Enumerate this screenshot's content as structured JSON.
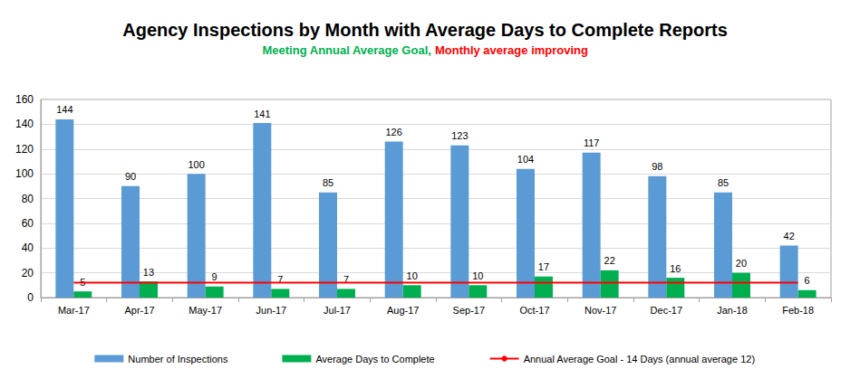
{
  "chart_data": {
    "type": "bar",
    "title": "Agency Inspections by Month with Average Days to Complete Reports",
    "subtitle": [
      {
        "text": "Meeting Annual Average Goal,",
        "color": "#00b050"
      },
      {
        "text": "Monthly average improving",
        "color": "#ff0000"
      }
    ],
    "categories": [
      "Mar-17",
      "Apr-17",
      "May-17",
      "Jun-17",
      "Jul-17",
      "Aug-17",
      "Sep-17",
      "Oct-17",
      "Nov-17",
      "Dec-17",
      "Jan-18",
      "Feb-18"
    ],
    "series": [
      {
        "name": "Number of Inspections",
        "color": "#5b9bd5",
        "values": [
          144,
          90,
          100,
          141,
          85,
          126,
          123,
          104,
          117,
          98,
          85,
          42
        ]
      },
      {
        "name": "Average Days to Complete",
        "color": "#00b050",
        "values": [
          5,
          13,
          9,
          7,
          7,
          10,
          10,
          17,
          22,
          16,
          20,
          6
        ]
      },
      {
        "name": "Annual Average Goal - 14 Days (annual average 12)",
        "type": "line",
        "color": "#ff0000",
        "line_style": "solid",
        "marker": "none",
        "data_labels": false,
        "values": [
          12,
          12,
          12,
          12,
          12,
          12,
          12,
          12,
          12,
          12,
          12,
          12
        ]
      }
    ],
    "ylim": [
      0,
      160
    ],
    "yticks": [
      0,
      20,
      40,
      60,
      80,
      100,
      120,
      140,
      160
    ],
    "grid": true,
    "legend": "bottom",
    "data_labels": true
  }
}
